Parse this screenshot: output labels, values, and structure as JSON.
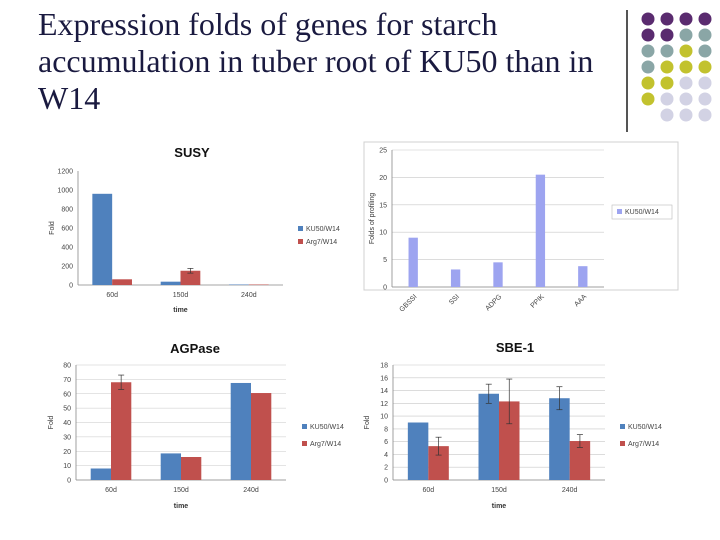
{
  "slide": {
    "title": "Expression folds of genes for starch accumulation in tuber root of KU50 than in W14"
  },
  "palette": {
    "purple": "#5a2b6f",
    "teal": "#8aa6a6",
    "olive": "#c2c22e",
    "lavender": "#d2d2e4",
    "series_blue": "#4f81bd",
    "series_red": "#c0504d",
    "periwinkle": "#9da4f0"
  },
  "chart_data": [
    {
      "id": "susy",
      "type": "bar",
      "title": "SUSY",
      "xlabel": "time",
      "ylabel": "Fold",
      "ylim": [
        0,
        1200
      ],
      "yticks": [
        0,
        200,
        400,
        600,
        800,
        1000,
        1200
      ],
      "categories": [
        "60d",
        "150d",
        "240d"
      ],
      "series": [
        {
          "name": "KU50/W14",
          "color": "#4f81bd",
          "values": [
            960,
            35,
            5
          ],
          "errors": [
            0,
            0,
            0
          ]
        },
        {
          "name": "Arg7/W14",
          "color": "#c0504d",
          "values": [
            60,
            150,
            5
          ],
          "errors": [
            0,
            25,
            0
          ]
        }
      ],
      "legend": "right"
    },
    {
      "id": "profiling",
      "type": "bar",
      "title": "",
      "xlabel": "",
      "ylabel": "Folds of profiling",
      "ylim": [
        0,
        25
      ],
      "yticks": [
        0,
        5,
        10,
        15,
        20,
        25
      ],
      "categories": [
        "GBSSI",
        "SSI",
        "ADPG",
        "PPIK",
        "AAA"
      ],
      "series": [
        {
          "name": "KU50/W14",
          "color": "#9da4f0",
          "values": [
            9,
            3.2,
            4.5,
            20.5,
            3.8
          ],
          "errors": [
            0,
            0,
            0,
            0,
            0
          ]
        }
      ],
      "legend": "right"
    },
    {
      "id": "agpase",
      "type": "bar",
      "title": "AGPase",
      "xlabel": "time",
      "ylabel": "Fold",
      "ylim": [
        0,
        80
      ],
      "yticks": [
        0,
        10,
        20,
        30,
        40,
        50,
        60,
        70,
        80
      ],
      "categories": [
        "60d",
        "150d",
        "240d"
      ],
      "series": [
        {
          "name": "KU50/W14",
          "color": "#4f81bd",
          "values": [
            8,
            18.5,
            67.5
          ],
          "errors": [
            0,
            0,
            0
          ]
        },
        {
          "name": "Arg7/W14",
          "color": "#c0504d",
          "values": [
            68,
            16,
            60.5
          ],
          "errors": [
            5,
            0,
            0
          ]
        }
      ],
      "legend": "right"
    },
    {
      "id": "sbe1",
      "type": "bar",
      "title": "SBE-1",
      "xlabel": "time",
      "ylabel": "Fold",
      "ylim": [
        0,
        18
      ],
      "yticks": [
        0,
        2,
        4,
        6,
        8,
        10,
        12,
        14,
        16,
        18
      ],
      "categories": [
        "60d",
        "150d",
        "240d"
      ],
      "series": [
        {
          "name": "KU50/W14",
          "color": "#4f81bd",
          "values": [
            9,
            13.5,
            12.8
          ],
          "errors": [
            0,
            1.5,
            1.8
          ]
        },
        {
          "name": "Arg7/W14",
          "color": "#c0504d",
          "values": [
            5.3,
            12.3,
            6.1
          ],
          "errors": [
            1.4,
            3.5,
            1
          ]
        }
      ],
      "legend": "right"
    }
  ]
}
